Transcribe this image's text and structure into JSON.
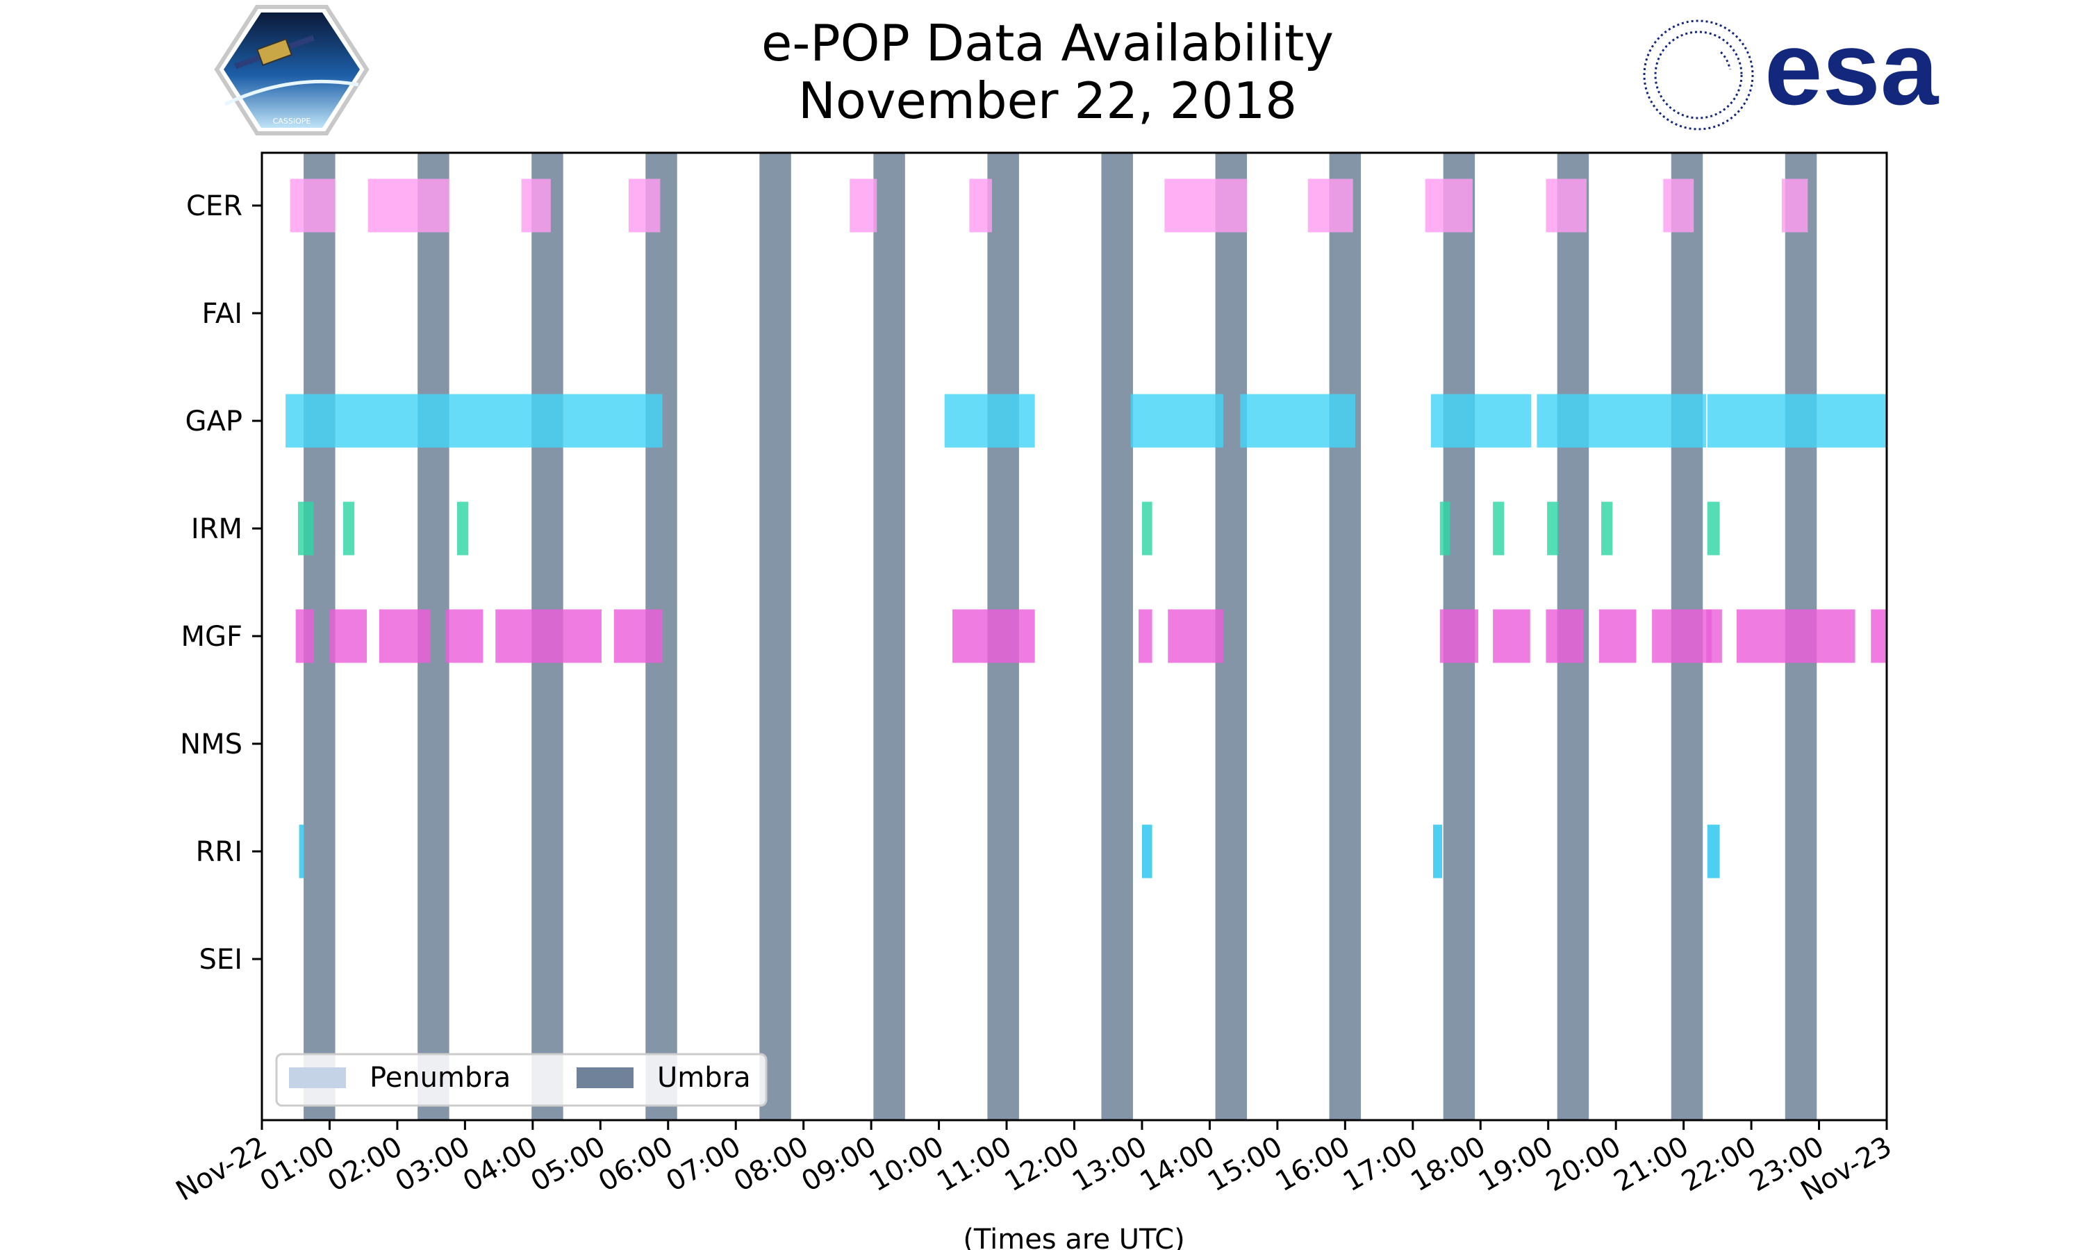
{
  "title": {
    "line1": "e-POP Data Availability",
    "line2": "November 22, 2018"
  },
  "logos": {
    "left": {
      "icon": "cassiope-mission-patch",
      "text": "CASSIOPE"
    },
    "right": {
      "icon": "esa-logo",
      "text": "esa",
      "color": "#13287c"
    }
  },
  "colors": {
    "umbra": "#6f8299",
    "penumbra": "#c5d3e6",
    "CER": "#ff9ef0",
    "GAP": "#44d4f6",
    "IRM": "#2fd6a6",
    "MGF": "#ec5fd9",
    "RRI": "#26c4ee"
  },
  "chart_data": {
    "type": "timeline",
    "xlabel": "(Times are UTC)",
    "xlim": [
      "2018-11-22 00:00",
      "2018-11-23 00:00"
    ],
    "x_tick_labels": [
      "Nov-22",
      "01:00",
      "02:00",
      "03:00",
      "04:00",
      "05:00",
      "06:00",
      "07:00",
      "08:00",
      "09:00",
      "10:00",
      "11:00",
      "12:00",
      "13:00",
      "14:00",
      "15:00",
      "16:00",
      "17:00",
      "18:00",
      "19:00",
      "20:00",
      "21:00",
      "22:00",
      "23:00",
      "Nov-23"
    ],
    "instruments": [
      "CER",
      "FAI",
      "GAP",
      "IRM",
      "MGF",
      "NMS",
      "RRI",
      "SEI"
    ],
    "legend": {
      "position": "lower-left",
      "entries": [
        {
          "label": "Penumbra",
          "color": "#c5d3e6"
        },
        {
          "label": "Umbra",
          "color": "#6f8299"
        }
      ]
    },
    "umbra": [
      [
        "00:37",
        "01:05"
      ],
      [
        "02:18",
        "02:46"
      ],
      [
        "03:59",
        "04:27"
      ],
      [
        "05:40",
        "06:08"
      ],
      [
        "07:21",
        "07:49"
      ],
      [
        "09:02",
        "09:30"
      ],
      [
        "10:43",
        "11:11"
      ],
      [
        "12:24",
        "12:52"
      ],
      [
        "14:05",
        "14:33"
      ],
      [
        "15:46",
        "16:14"
      ],
      [
        "17:27",
        "17:55"
      ],
      [
        "19:08",
        "19:36"
      ],
      [
        "20:49",
        "21:17"
      ],
      [
        "22:30",
        "22:58"
      ]
    ],
    "availability": {
      "CER": [
        [
          "00:25",
          "01:05"
        ],
        [
          "01:34",
          "02:46"
        ],
        [
          "03:50",
          "04:16"
        ],
        [
          "05:25",
          "05:53"
        ],
        [
          "08:41",
          "09:05"
        ],
        [
          "10:27",
          "10:47"
        ],
        [
          "13:20",
          "14:33"
        ],
        [
          "15:27",
          "16:07"
        ],
        [
          "17:11",
          "17:53"
        ],
        [
          "18:58",
          "19:34"
        ],
        [
          "20:42",
          "21:09"
        ],
        [
          "22:27",
          "22:50"
        ]
      ],
      "FAI": [],
      "GAP": [
        [
          "00:21",
          "05:55"
        ],
        [
          "10:05",
          "11:25"
        ],
        [
          "12:50",
          "14:12"
        ],
        [
          "14:27",
          "16:09"
        ],
        [
          "17:16",
          "18:45"
        ],
        [
          "18:50",
          "21:20"
        ],
        [
          "21:21",
          "23:59"
        ]
      ],
      "IRM": [
        [
          "00:32",
          "00:46"
        ],
        [
          "01:12",
          "01:22"
        ],
        [
          "02:53",
          "03:03"
        ],
        [
          "13:00",
          "13:09"
        ],
        [
          "17:24",
          "17:33"
        ],
        [
          "18:11",
          "18:21"
        ],
        [
          "18:59",
          "19:09"
        ],
        [
          "19:47",
          "19:57"
        ],
        [
          "21:21",
          "21:32"
        ]
      ],
      "MGF": [
        [
          "00:30",
          "00:46"
        ],
        [
          "01:00",
          "01:33"
        ],
        [
          "01:44",
          "02:29"
        ],
        [
          "02:43",
          "03:16"
        ],
        [
          "03:27",
          "05:01"
        ],
        [
          "05:12",
          "05:55"
        ],
        [
          "10:12",
          "11:25"
        ],
        [
          "12:57",
          "13:09"
        ],
        [
          "13:23",
          "14:12"
        ],
        [
          "17:24",
          "17:58"
        ],
        [
          "18:11",
          "18:44"
        ],
        [
          "18:58",
          "19:31"
        ],
        [
          "19:45",
          "20:18"
        ],
        [
          "20:32",
          "21:25"
        ],
        [
          "21:20",
          "21:34"
        ],
        [
          "21:47",
          "23:32"
        ],
        [
          "23:46",
          "23:59"
        ]
      ],
      "NMS": [],
      "RRI": [
        [
          "00:33",
          "00:37"
        ],
        [
          "13:00",
          "13:09"
        ],
        [
          "17:18",
          "17:26"
        ],
        [
          "21:21",
          "21:32"
        ]
      ],
      "SEI": []
    }
  }
}
